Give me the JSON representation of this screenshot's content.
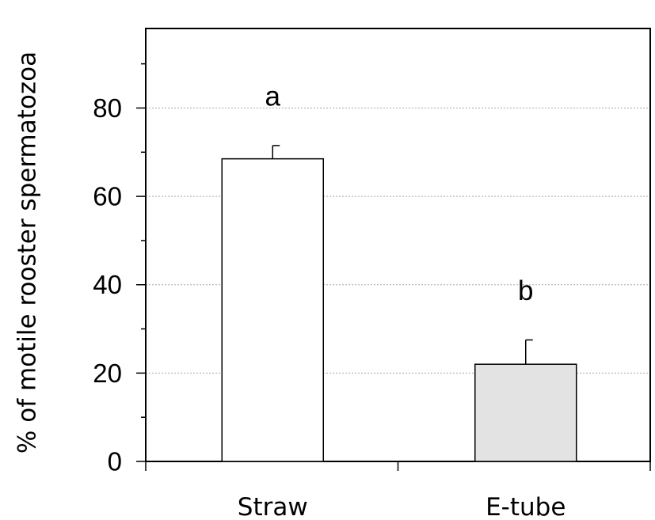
{
  "chart_data": {
    "type": "bar",
    "categories": [
      "Straw",
      "E-tube"
    ],
    "values": [
      68.5,
      22
    ],
    "error_bars": [
      3,
      5.5
    ],
    "significance_labels": [
      "a",
      "b"
    ],
    "bar_colors": [
      "#ffffff",
      "#e3e3e3"
    ],
    "ylabel": "% of motile rooster spermatozoa",
    "xlabel": "",
    "ylim": [
      0,
      98
    ],
    "yticks": [
      0,
      20,
      40,
      60,
      80
    ],
    "yticks_minor": [
      10,
      30,
      50,
      70,
      90
    ],
    "grid": "horizontal dotted at major ticks",
    "legend": "none"
  }
}
